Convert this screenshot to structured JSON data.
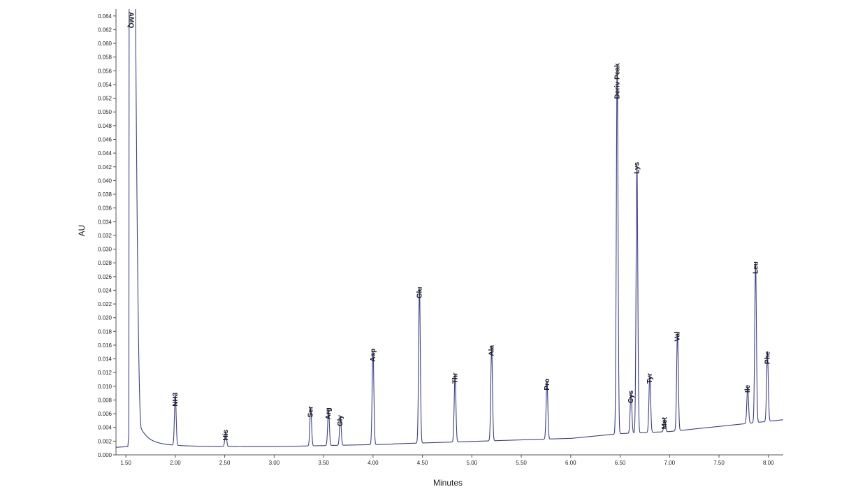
{
  "chart_data": {
    "type": "line",
    "title": "",
    "xlabel": "Minutes",
    "ylabel": "AU",
    "xlim": [
      1.4,
      8.15
    ],
    "ylim": [
      0.0,
      0.065
    ],
    "grid": false,
    "line_color": "#3d3f8f",
    "x_ticks": [
      "1.50",
      "2.00",
      "2.50",
      "3.00",
      "3.50",
      "4.00",
      "4.50",
      "5.00",
      "5.50",
      "6.00",
      "6.50",
      "7.00",
      "7.50",
      "8.00"
    ],
    "y_ticks": [
      "0.000",
      "0.002",
      "0.004",
      "0.006",
      "0.008",
      "0.010",
      "0.012",
      "0.014",
      "0.016",
      "0.018",
      "0.020",
      "0.022",
      "0.024",
      "0.026",
      "0.028",
      "0.030",
      "0.032",
      "0.034",
      "0.036",
      "0.038",
      "0.040",
      "0.042",
      "0.044",
      "0.046",
      "0.048",
      "0.050",
      "0.052",
      "0.054",
      "0.056",
      "0.058",
      "0.060",
      "0.062",
      "0.064"
    ],
    "peaks": [
      {
        "label": "AMQ",
        "x": 1.58,
        "y": 0.065
      },
      {
        "label": "NH3",
        "x": 2.0,
        "y": 0.0088
      },
      {
        "label": "His",
        "x": 2.51,
        "y": 0.0034
      },
      {
        "label": "Ser",
        "x": 3.37,
        "y": 0.0068
      },
      {
        "label": "Arg",
        "x": 3.55,
        "y": 0.0066
      },
      {
        "label": "Gly",
        "x": 3.67,
        "y": 0.0055
      },
      {
        "label": "Asp",
        "x": 4.0,
        "y": 0.0152
      },
      {
        "label": "Glu",
        "x": 4.47,
        "y": 0.0242
      },
      {
        "label": "Thr",
        "x": 4.83,
        "y": 0.0117
      },
      {
        "label": "Ala",
        "x": 5.2,
        "y": 0.0157
      },
      {
        "label": "Pro",
        "x": 5.76,
        "y": 0.0108
      },
      {
        "label": "Deriv Peak",
        "x": 6.47,
        "y": 0.0568
      },
      {
        "label": "Cys",
        "x": 6.61,
        "y": 0.0091
      },
      {
        "label": "Lys",
        "x": 6.67,
        "y": 0.0424
      },
      {
        "label": "Tyr",
        "x": 6.8,
        "y": 0.0116
      },
      {
        "label": "Met",
        "x": 6.95,
        "y": 0.0052
      },
      {
        "label": "Val",
        "x": 7.08,
        "y": 0.0177
      },
      {
        "label": "Ile",
        "x": 7.79,
        "y": 0.0099
      },
      {
        "label": "Leu",
        "x": 7.87,
        "y": 0.0279
      },
      {
        "label": "Phe",
        "x": 7.99,
        "y": 0.0148
      }
    ]
  }
}
